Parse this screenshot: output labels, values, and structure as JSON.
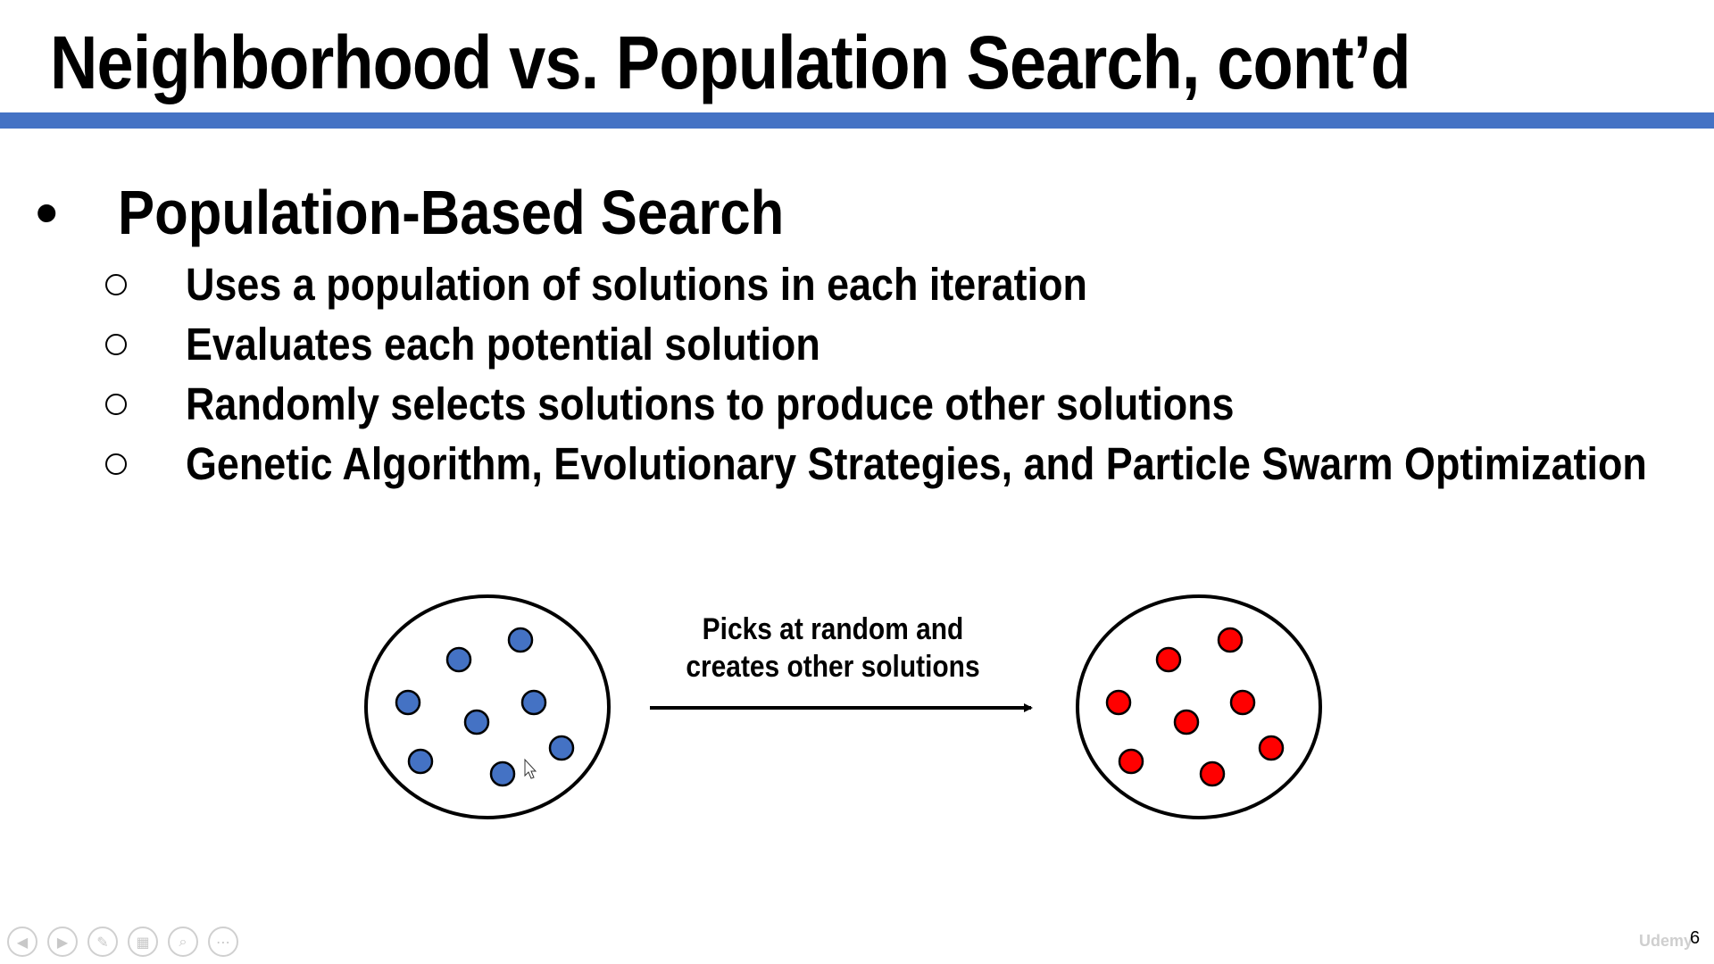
{
  "slide": {
    "title": "Neighborhood vs. Population Search, cont’d",
    "bullet": {
      "symbol": "•",
      "heading": "Population-Based Search",
      "items": [
        "Uses a population of solutions in each iteration",
        "Evaluates each potential solution",
        "Randomly selects solutions to produce other solutions",
        "Genetic Algorithm, Evolutionary Strategies, and Particle Swarm Optimization"
      ]
    },
    "diagram": {
      "arrow_label_line1": "Picks at random and",
      "arrow_label_line2": "creates other solutions",
      "left_population_color": "#4472c4",
      "right_population_color": "#ff0000"
    },
    "page_number": "6",
    "watermark": "Udemy"
  },
  "colors": {
    "accent_bar": "#4472c4"
  },
  "toolbar": {
    "icons": [
      "previous-icon",
      "next-icon",
      "pen-icon",
      "slides-icon",
      "zoom-icon",
      "more-icon"
    ]
  }
}
